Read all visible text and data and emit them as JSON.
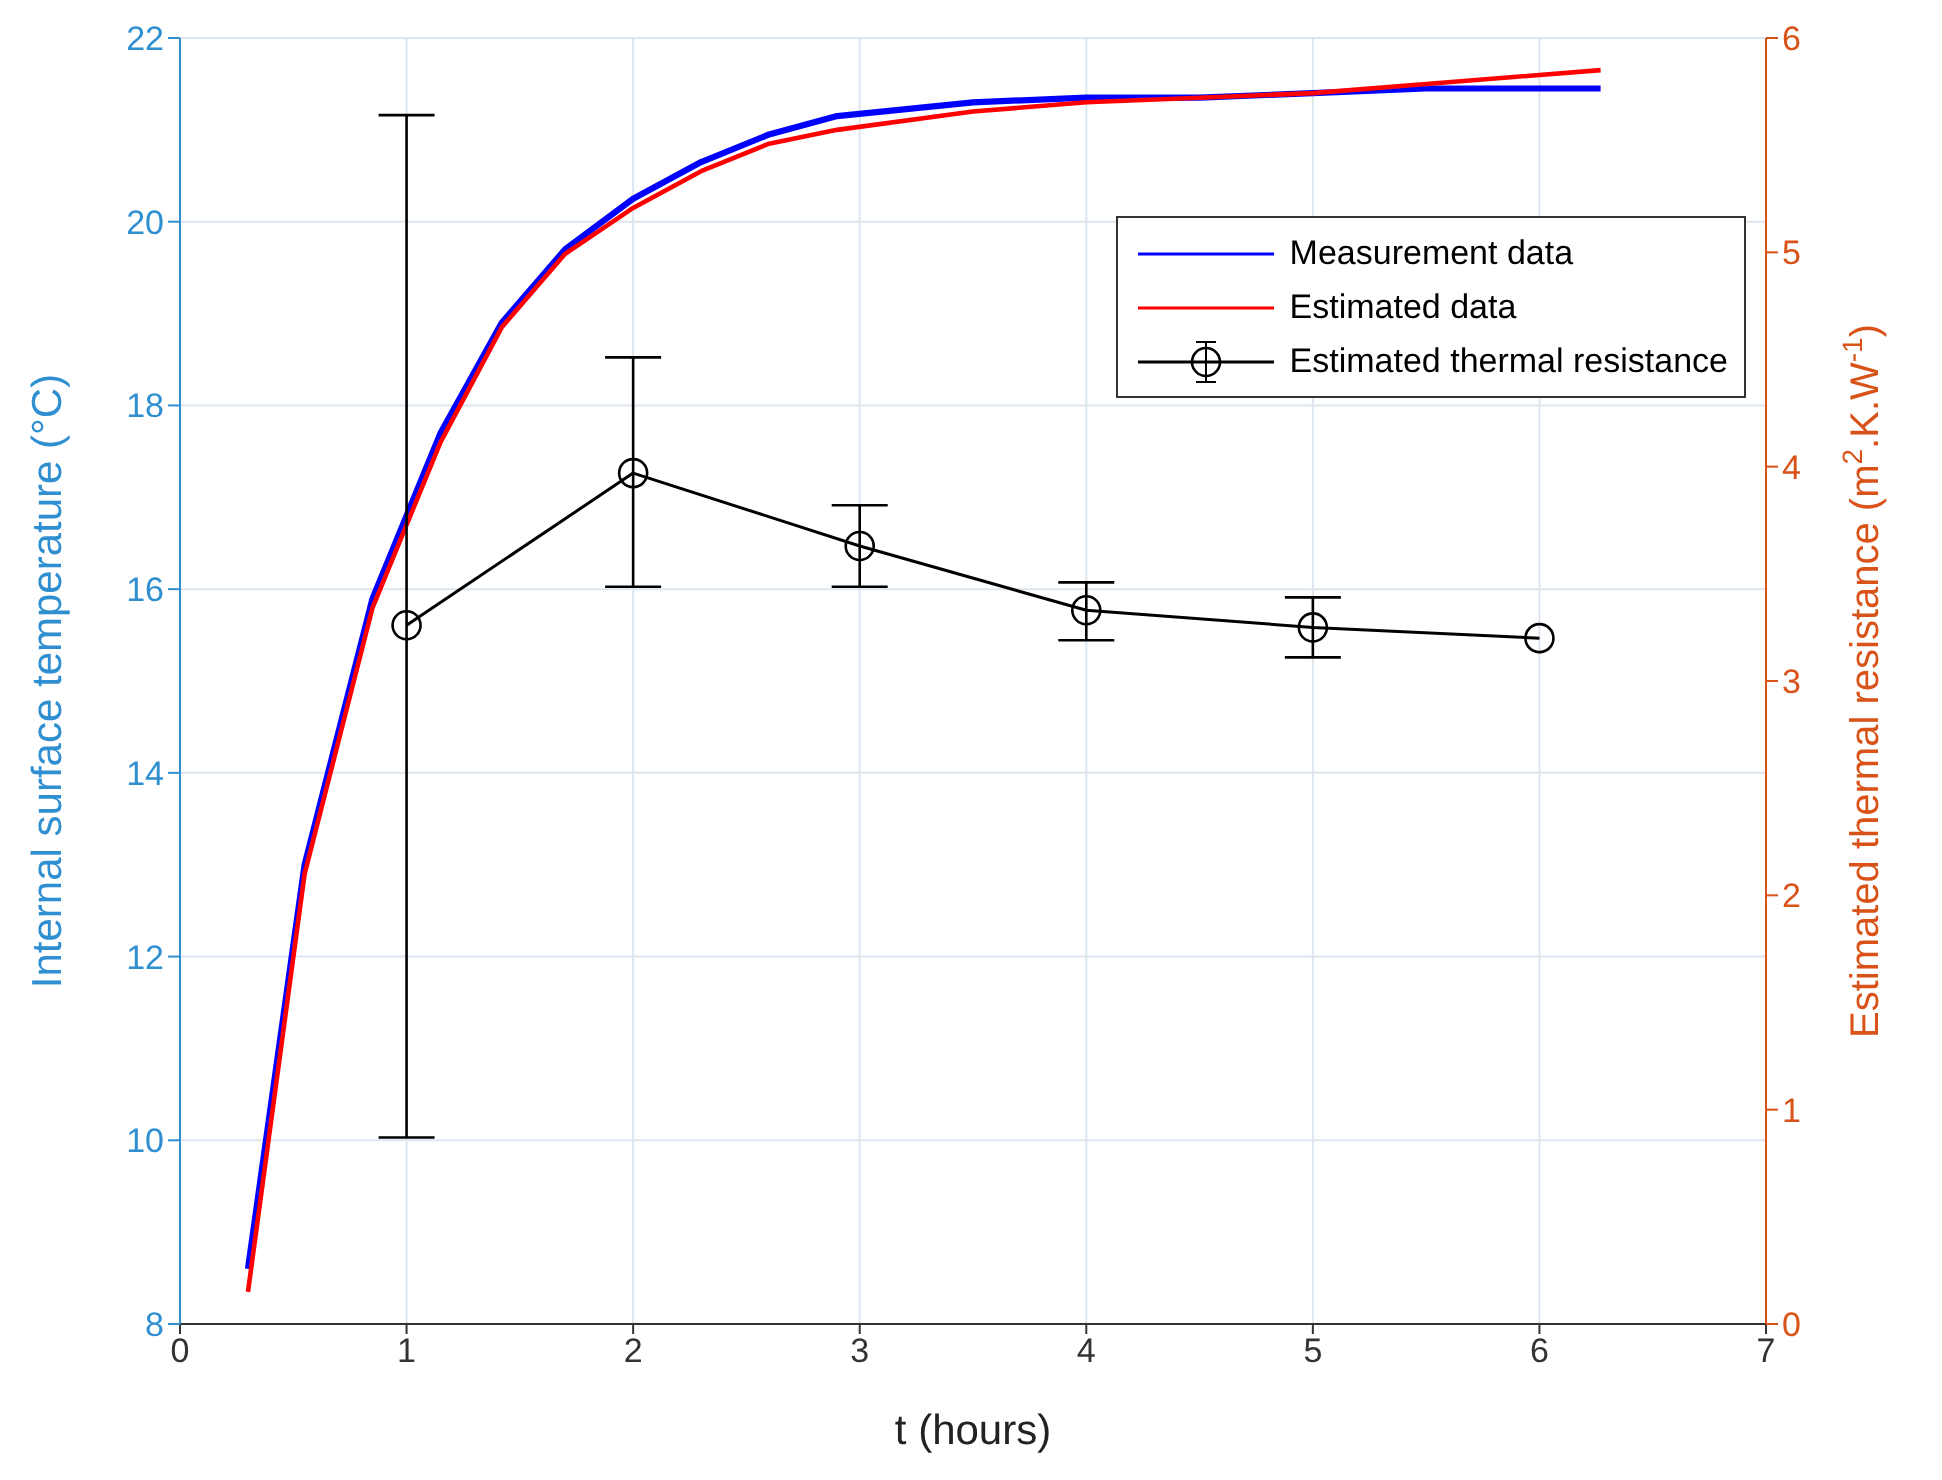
{
  "chart_data": {
    "type": "line",
    "xlabel": "t (hours)",
    "ylabel": "Internal surface temperature (°C)",
    "y2label": "Estimated thermal resistance (m$^{2}$.K.W$^{-1}$)",
    "xlim": [
      0,
      7
    ],
    "xticks": [
      0,
      1,
      2,
      3,
      4,
      5,
      6,
      7
    ],
    "ylim": [
      8,
      22
    ],
    "yticks": [
      8,
      10,
      12,
      14,
      16,
      18,
      20,
      22
    ],
    "y2lim": [
      0,
      6
    ],
    "y2ticks": [
      0,
      1,
      2,
      3,
      4,
      5,
      6
    ],
    "grid": true,
    "legend": "top right",
    "series": [
      {
        "name": "Measurement data",
        "color": "#0000ff",
        "marker": "none",
        "x": [
          0.3,
          0.55,
          0.85,
          1.15,
          1.42,
          1.7,
          2,
          2.3,
          2.6,
          2.9,
          3.5,
          4,
          4.5,
          5,
          5.5,
          6.27
        ],
        "values": [
          8.6,
          13.0,
          15.9,
          17.7,
          18.9,
          19.7,
          20.25,
          20.65,
          20.95,
          21.15,
          21.3,
          21.35,
          21.35,
          21.4,
          21.45,
          21.45
        ]
      },
      {
        "name": "Estimated data",
        "color": "#ff0000",
        "marker": "none",
        "x": [
          0.3,
          0.55,
          0.85,
          1.15,
          1.42,
          1.7,
          2,
          2.3,
          2.6,
          2.9,
          3.5,
          4,
          4.5,
          5,
          5.5,
          6.27
        ],
        "values": [
          8.35,
          12.9,
          15.8,
          17.6,
          18.85,
          19.65,
          20.15,
          20.55,
          20.85,
          21.0,
          21.2,
          21.3,
          21.35,
          21.4,
          21.5,
          21.65
        ]
      },
      {
        "name": "Estimated thermal resistance",
        "color": "#000000",
        "marker": "circle",
        "axis": "y2",
        "x": [
          1,
          2,
          3,
          4,
          5,
          6
        ],
        "values": [
          3.26,
          3.97,
          3.63,
          3.33,
          3.25,
          3.2
        ],
        "errors": [
          [
            0.87,
            5.64
          ],
          [
            3.44,
            4.51
          ],
          [
            3.44,
            3.82
          ],
          [
            3.19,
            3.46
          ],
          [
            3.11,
            3.39
          ],
          null
        ]
      }
    ]
  }
}
